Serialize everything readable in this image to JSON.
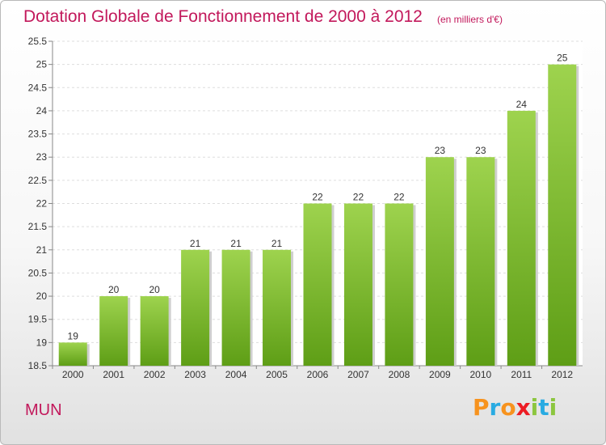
{
  "chart_data": {
    "type": "bar",
    "title": "Dotation Globale de Fonctionnement de 2000 à 2012",
    "subtitle": "(en milliers d'€)",
    "categories": [
      "2000",
      "2001",
      "2002",
      "2003",
      "2004",
      "2005",
      "2006",
      "2007",
      "2008",
      "2009",
      "2010",
      "2011",
      "2012"
    ],
    "values": [
      19,
      20,
      20,
      21,
      21,
      21,
      22,
      22,
      22,
      23,
      23,
      24,
      25
    ],
    "ylim": [
      18.5,
      25.5
    ],
    "yticks": [
      "18.5",
      "19",
      "19.5",
      "20",
      "20.5",
      "21",
      "21.5",
      "22",
      "22.5",
      "23",
      "23.5",
      "24",
      "24.5",
      "25",
      "25.5"
    ],
    "grid": true,
    "bar_color": "#8cc63f",
    "xlabel": "",
    "ylabel": ""
  },
  "commune": "MUN",
  "logo": {
    "letters": [
      "P",
      "r",
      "o",
      "x",
      "i",
      "t",
      "i"
    ],
    "colors": [
      "#f7931e",
      "#29abe2",
      "#f7931e",
      "#ed1c24",
      "#8cc63f",
      "#29abe2",
      "#8cc63f"
    ]
  }
}
